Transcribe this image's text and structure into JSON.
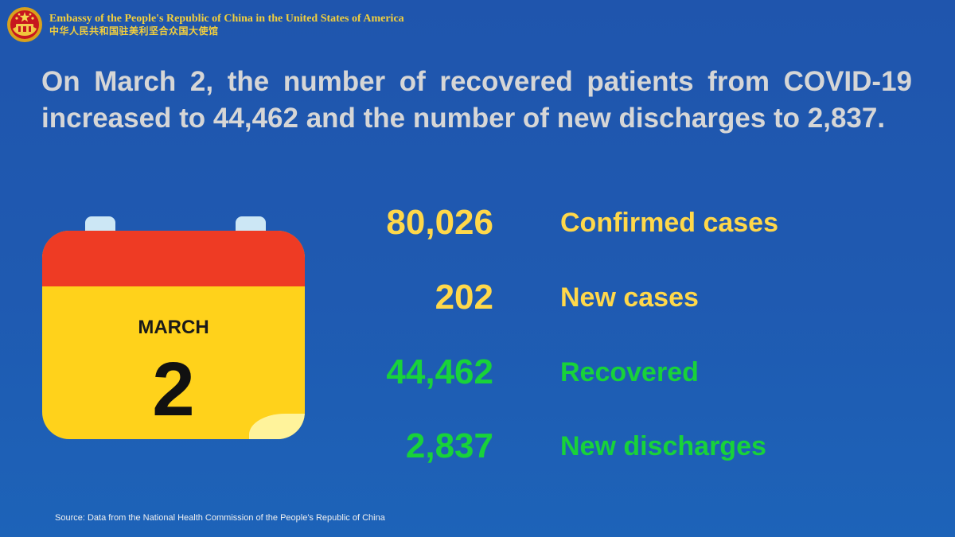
{
  "header": {
    "emblem_icon": "national-emblem-icon",
    "embassy_en": "Embassy of the People's Republic of China in the United States of America",
    "embassy_cn": "中华人民共和国驻美利坚合众国大使馆",
    "accent_color": "#f2cf3d"
  },
  "headline": "On March 2, the number of recovered patients from COVID-19 increased to 44,462 and the number of new discharges to 2,837.",
  "calendar": {
    "icon": "calendar-icon",
    "month": "MARCH",
    "day": "2",
    "colors": {
      "header": "#ee3b24",
      "body": "#ffd21b",
      "rings": "#cce7f5",
      "fold": "#fff39b"
    }
  },
  "stats": [
    {
      "value": "80,026",
      "label": "Confirmed cases",
      "color": "#ffd84a"
    },
    {
      "value": "202",
      "label": "New cases",
      "color": "#ffd84a"
    },
    {
      "value": "44,462",
      "label": "Recovered",
      "color": "#18d23a"
    },
    {
      "value": "2,837",
      "label": "New discharges",
      "color": "#18d23a"
    }
  ],
  "source": "Source: Data from the National Health Commission of the People's Republic of China",
  "background_color": "#1f57ae"
}
